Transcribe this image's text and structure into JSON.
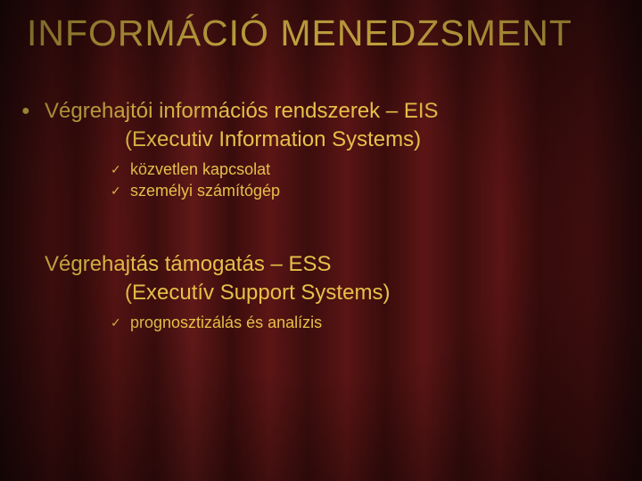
{
  "slide": {
    "title": "INFORMÁCIÓ MENEDZSMENT",
    "colors": {
      "text": "#e6c04a",
      "background_dark": "#2a0a0a",
      "background_light": "#601818"
    },
    "fonts": {
      "title_family": "Trebuchet MS",
      "body_family": "Verdana",
      "title_size_pt": 31,
      "l1_size_pt": 18,
      "l2_size_pt": 14
    },
    "sections": [
      {
        "bullet_glyph": "●",
        "line1": "Végrehajtói információs rendszerek – EIS",
        "line2": "(Executiv Information Systems)",
        "sub_bullet_glyph": "✓",
        "subs": [
          {
            "text": "közvetlen kapcsolat"
          },
          {
            "text": "személyi számítógép"
          }
        ]
      },
      {
        "bullet_glyph": "",
        "line1": "Végrehajtás támogatás – ESS",
        "line2": "(Executív Support Systems)",
        "sub_bullet_glyph": "✓",
        "subs": [
          {
            "text": "prognosztizálás és analízis"
          }
        ]
      }
    ]
  }
}
